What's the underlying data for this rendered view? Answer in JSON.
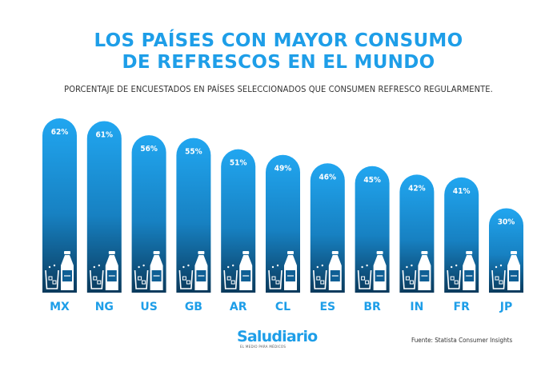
{
  "header": {
    "title_line1": "LOS PAÍSES CON MAYOR CONSUMO",
    "title_line2": "DE REFRESCOS EN EL MUNDO",
    "subtitle": "PORCENTAJE DE ENCUESTADOS EN PAÍSES SELECCIONADOS QUE CONSUMEN REFRESCO REGULARMENTE."
  },
  "chart_data": {
    "type": "bar",
    "categories": [
      "MX",
      "NG",
      "US",
      "GB",
      "AR",
      "CL",
      "ES",
      "BR",
      "IN",
      "FR",
      "JP"
    ],
    "values": [
      62,
      61,
      56,
      55,
      51,
      49,
      46,
      45,
      42,
      41,
      30
    ],
    "value_labels": [
      "62%",
      "61%",
      "56%",
      "55%",
      "51%",
      "49%",
      "46%",
      "45%",
      "42%",
      "41%",
      "30%"
    ],
    "title": "LOS PAÍSES CON MAYOR CONSUMO DE REFRESCOS EN EL MUNDO",
    "xlabel": "",
    "ylabel": "",
    "unit": "%",
    "grid": false,
    "legend": "none",
    "bar_icons": [
      "glass-with-ice-icon",
      "soda-bottle-icon"
    ]
  },
  "colors": {
    "accent": "#1e9ee8",
    "bar_top": "#21a6f0",
    "bar_bottom": "#0a3a5c",
    "icon": "#ffffff",
    "text_dark": "#333333"
  },
  "branding": {
    "logo": "Saludiario",
    "tagline": "EL MEDIO PARA MÉDICOS"
  },
  "footer": {
    "source": "Fuente: Statista Consumer Insights"
  }
}
